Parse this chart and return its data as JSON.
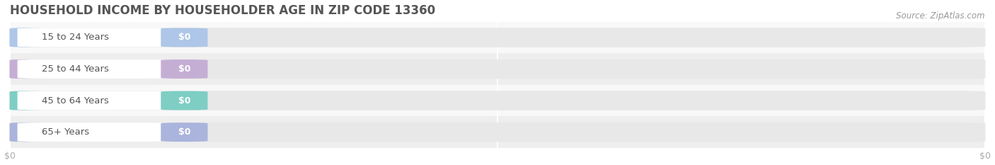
{
  "title": "HOUSEHOLD INCOME BY HOUSEHOLDER AGE IN ZIP CODE 13360",
  "source_text": "Source: ZipAtlas.com",
  "categories": [
    "15 to 24 Years",
    "25 to 44 Years",
    "45 to 64 Years",
    "65+ Years"
  ],
  "values": [
    0,
    0,
    0,
    0
  ],
  "bar_colors": [
    "#aec6e8",
    "#c5aed4",
    "#7ecec4",
    "#aab4dc"
  ],
  "background_color": "#ffffff",
  "plot_bg_color": "#f0f0f0",
  "bar_bg_color": "#e8e8e8",
  "bar_white_color": "#ffffff",
  "title_fontsize": 12,
  "source_fontsize": 8.5,
  "label_fontsize": 9.5,
  "tick_fontsize": 9,
  "bar_height": 0.62,
  "tick_label_color": "#aaaaaa",
  "grid_color": "#ffffff",
  "source_color": "#999999",
  "title_color": "#555555",
  "label_text_color": "#555555",
  "value_text_color": "#ffffff",
  "row_colors": [
    "#f8f8f8",
    "#eeeeee"
  ]
}
